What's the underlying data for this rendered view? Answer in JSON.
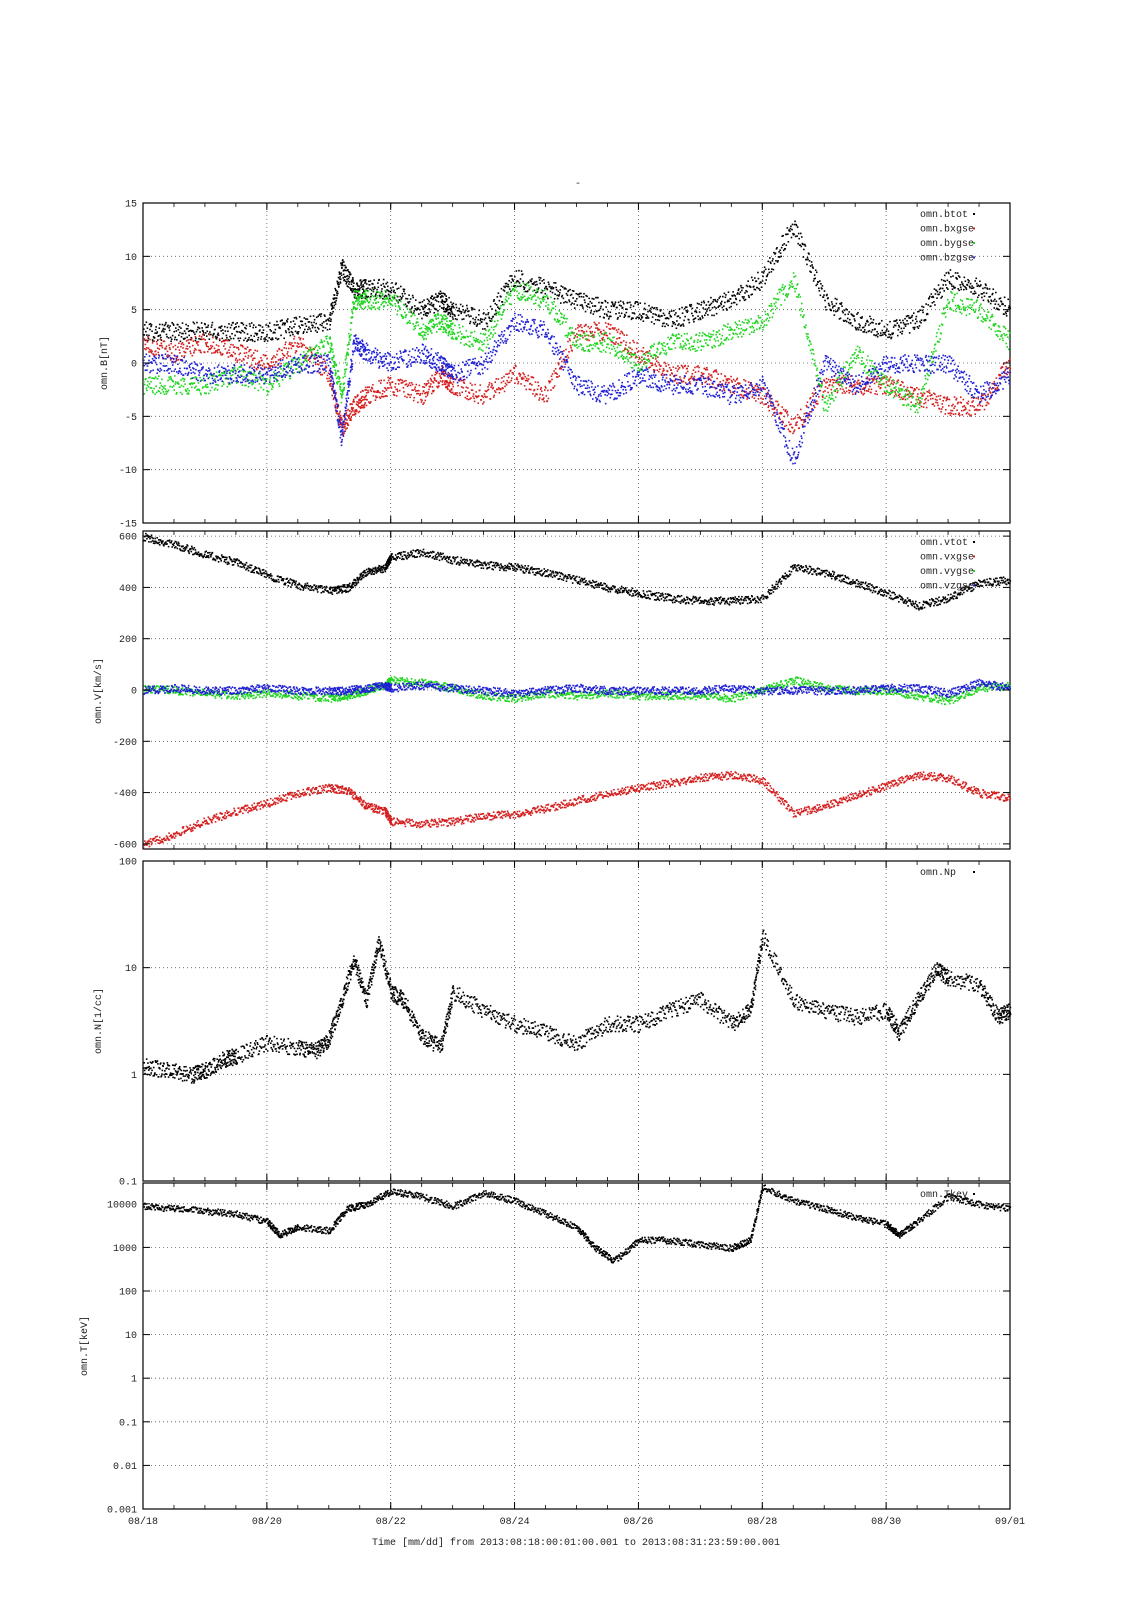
{
  "title": "-",
  "colors": {
    "black": "#000000",
    "red": "#d41f1f",
    "green": "#1fd41f",
    "blue": "#1f1fd4",
    "grid": "#444444"
  },
  "x_axis": {
    "label": "Time [mm/dd]  from 2013:08:18:00:01:00.001  to  2013:08:31:23:59:00.001",
    "range_days": [
      0,
      14
    ],
    "tick_labels": [
      "08/18",
      "08/20",
      "08/22",
      "08/24",
      "08/26",
      "08/28",
      "08/30",
      "09/01"
    ],
    "grid": true
  },
  "chart_data": [
    {
      "type": "scatter",
      "id": "panel-b",
      "ylabel": "omn.B[nT]",
      "ylim": [
        -15,
        15
      ],
      "yscale": "linear",
      "yticks": [
        -15,
        -10,
        -5,
        0,
        5,
        10,
        15
      ],
      "grid": true,
      "legend_position": "top-right",
      "series": [
        {
          "name": "omn.btot",
          "color": "#000000",
          "x": [
            0,
            0.5,
            1,
            1.5,
            2,
            2.5,
            3,
            3.2,
            3.4,
            3.6,
            4,
            4.5,
            4.8,
            5,
            5.5,
            6,
            6.5,
            7,
            7.5,
            8,
            8.5,
            9,
            9.5,
            10,
            10.5,
            11,
            11.5,
            12,
            12.5,
            13,
            13.5,
            14
          ],
          "y": [
            3,
            3,
            3,
            3,
            3,
            3.5,
            4,
            9,
            7,
            7,
            7,
            5,
            6,
            5,
            4,
            8,
            7,
            6,
            5,
            5,
            4,
            5,
            6,
            8,
            13,
            6,
            4,
            3,
            4,
            8,
            7,
            5
          ]
        },
        {
          "name": "omn.bxgse",
          "color": "#d41f1f",
          "x": [
            0,
            0.5,
            1,
            1.5,
            2,
            2.5,
            3,
            3.2,
            3.4,
            3.6,
            4,
            4.5,
            4.8,
            5,
            5.5,
            6,
            6.5,
            7,
            7.5,
            8,
            8.5,
            9,
            9.5,
            10,
            10.5,
            11,
            11.5,
            12,
            12.5,
            13,
            13.5,
            14
          ],
          "y": [
            2,
            1,
            2,
            1,
            0,
            2,
            -1,
            -6,
            -4,
            -3,
            -2,
            -3,
            -1,
            -2,
            -3,
            -1,
            -3,
            3,
            3,
            1,
            -1,
            -1,
            -2,
            -3,
            -6,
            -2,
            -2,
            -2,
            -3,
            -4,
            -4,
            0
          ]
        },
        {
          "name": "omn.bygse",
          "color": "#1fd41f",
          "x": [
            0,
            0.5,
            1,
            1.5,
            2,
            2.5,
            3,
            3.2,
            3.4,
            3.6,
            4,
            4.5,
            4.8,
            5,
            5.5,
            6,
            6.5,
            7,
            7.5,
            8,
            8.5,
            9,
            9.5,
            10,
            10.5,
            11,
            11.5,
            12,
            12.5,
            13,
            13.5,
            14
          ],
          "y": [
            -2,
            -2,
            -2,
            -1,
            -2,
            0,
            2,
            -3,
            6,
            6,
            6,
            3,
            4,
            3,
            2,
            7,
            6,
            2,
            2,
            0,
            2,
            2,
            3,
            4,
            8,
            -4,
            1,
            -2,
            -4,
            6,
            5,
            2
          ]
        },
        {
          "name": "omn.bzgse",
          "color": "#1f1fd4",
          "x": [
            0,
            0.5,
            1,
            1.5,
            2,
            2.5,
            3,
            3.2,
            3.4,
            3.6,
            4,
            4.5,
            4.8,
            5,
            5.5,
            6,
            6.5,
            7,
            7.5,
            8,
            8.5,
            9,
            9.5,
            10,
            10.5,
            11,
            11.5,
            12,
            12.5,
            13,
            13.5,
            14
          ],
          "y": [
            0,
            0,
            -1,
            -1,
            -1,
            0,
            0,
            -7,
            2,
            1,
            0,
            1,
            0,
            -1,
            0,
            4,
            3,
            -2,
            -3,
            -1,
            -2,
            -2,
            -3,
            -2,
            -9,
            0,
            -2,
            0,
            0,
            0,
            -3,
            -1
          ]
        }
      ]
    },
    {
      "type": "scatter",
      "id": "panel-v",
      "ylabel": "omn.V[km/s]",
      "ylim": [
        -620,
        620
      ],
      "yscale": "linear",
      "yticks": [
        -600,
        -400,
        -200,
        0,
        200,
        400,
        600
      ],
      "grid": true,
      "legend_position": "top-right",
      "series": [
        {
          "name": "omn.vtot",
          "color": "#000000",
          "x": [
            0,
            0.5,
            1,
            1.5,
            2,
            2.5,
            3,
            3.3,
            3.6,
            3.9,
            4,
            4.5,
            5,
            5.5,
            6,
            6.5,
            7,
            7.5,
            8,
            8.5,
            9,
            9.5,
            10,
            10.5,
            11,
            11.5,
            12,
            12.5,
            13,
            13.5,
            14
          ],
          "y": [
            600,
            570,
            530,
            500,
            450,
            410,
            390,
            400,
            460,
            480,
            520,
            540,
            510,
            490,
            480,
            460,
            430,
            400,
            380,
            360,
            350,
            350,
            360,
            480,
            460,
            420,
            380,
            330,
            360,
            420,
            430
          ]
        },
        {
          "name": "omn.vxgse",
          "color": "#d41f1f",
          "x": [
            0,
            0.5,
            1,
            1.5,
            2,
            2.5,
            3,
            3.3,
            3.6,
            3.9,
            4,
            4.5,
            5,
            5.5,
            6,
            6.5,
            7,
            7.5,
            8,
            8.5,
            9,
            9.5,
            10,
            10.5,
            11,
            11.5,
            12,
            12.5,
            13,
            13.5,
            14
          ],
          "y": [
            -600,
            -560,
            -510,
            -470,
            -440,
            -400,
            -380,
            -390,
            -450,
            -470,
            -510,
            -520,
            -510,
            -490,
            -480,
            -460,
            -430,
            -400,
            -380,
            -360,
            -340,
            -330,
            -350,
            -480,
            -450,
            -410,
            -370,
            -330,
            -340,
            -400,
            -420
          ]
        },
        {
          "name": "omn.vygse",
          "color": "#1fd41f",
          "x": [
            0,
            0.5,
            1,
            1.5,
            2,
            2.5,
            3,
            3.3,
            3.6,
            3.9,
            4,
            4.5,
            5,
            5.5,
            6,
            6.5,
            7,
            7.5,
            8,
            8.5,
            9,
            9.5,
            10,
            10.5,
            11,
            11.5,
            12,
            12.5,
            13,
            13.5,
            14
          ],
          "y": [
            10,
            0,
            -10,
            -20,
            -10,
            -20,
            -30,
            -20,
            0,
            20,
            40,
            30,
            10,
            -20,
            -30,
            -10,
            -20,
            -10,
            -20,
            -20,
            -20,
            -30,
            0,
            40,
            10,
            0,
            0,
            -20,
            -40,
            10,
            20
          ]
        },
        {
          "name": "omn.vzgse",
          "color": "#1f1fd4",
          "x": [
            0,
            0.5,
            1,
            1.5,
            2,
            2.5,
            3,
            3.3,
            3.6,
            3.9,
            4,
            4.5,
            5,
            5.5,
            6,
            6.5,
            7,
            7.5,
            8,
            8.5,
            9,
            9.5,
            10,
            10.5,
            11,
            11.5,
            12,
            12.5,
            13,
            13.5,
            14
          ],
          "y": [
            0,
            10,
            0,
            0,
            10,
            0,
            0,
            0,
            10,
            20,
            10,
            20,
            10,
            0,
            -10,
            0,
            10,
            0,
            0,
            0,
            0,
            10,
            0,
            0,
            0,
            0,
            10,
            10,
            -10,
            30,
            10
          ]
        }
      ]
    },
    {
      "type": "scatter",
      "id": "panel-n",
      "ylabel": "omn.N[1/cc]",
      "ylim": [
        0.1,
        100
      ],
      "yscale": "log",
      "yticks": [
        0.1,
        1,
        10,
        100
      ],
      "grid": true,
      "legend_position": "top-right",
      "series": [
        {
          "name": "omn.Np",
          "color": "#000000",
          "x": [
            0,
            0.4,
            0.8,
            1,
            1.3,
            1.5,
            2,
            2.5,
            2.8,
            3,
            3.2,
            3.4,
            3.6,
            3.8,
            4,
            4.2,
            4.5,
            4.8,
            5,
            5.5,
            6,
            6.5,
            7,
            7.5,
            8,
            8.5,
            9,
            9.5,
            9.8,
            10,
            10.5,
            11,
            11.5,
            12,
            12.2,
            12.5,
            12.8,
            13,
            13.5,
            13.8,
            14
          ],
          "y": [
            1.2,
            1.1,
            1,
            1.1,
            1.4,
            1.5,
            2,
            1.8,
            1.7,
            2.2,
            5,
            12,
            5,
            18,
            6,
            5,
            2.3,
            1.8,
            6,
            4,
            3,
            2.5,
            2,
            3,
            3,
            4,
            5,
            3,
            4,
            20,
            5,
            4,
            3.5,
            4,
            2.5,
            5,
            10,
            8,
            7,
            3.5,
            4
          ]
        }
      ]
    },
    {
      "type": "scatter",
      "id": "panel-t",
      "ylabel": "omn.T[keV]",
      "ylim": [
        0.001,
        30000
      ],
      "yscale": "log",
      "yticks": [
        "0.001",
        "0.01",
        "0.1",
        "1",
        "10",
        "100",
        "1000",
        "10000"
      ],
      "ytick_values": [
        0.001,
        0.01,
        0.1,
        1,
        10,
        100,
        1000,
        10000
      ],
      "grid": true,
      "legend_position": "top-right",
      "series": [
        {
          "name": "omn.Tkev",
          "color": "#000000",
          "x": [
            0,
            0.5,
            1,
            1.5,
            2,
            2.2,
            2.5,
            3,
            3.3,
            3.6,
            4,
            4.5,
            5,
            5.5,
            6,
            6.5,
            7,
            7.3,
            7.6,
            8,
            8.5,
            9,
            9.5,
            9.8,
            10,
            10.5,
            11,
            11.5,
            12,
            12.2,
            12.5,
            13,
            13.5,
            14
          ],
          "y": [
            9000,
            8000,
            7000,
            6000,
            4000,
            2000,
            3000,
            2500,
            8000,
            10000,
            20000,
            15000,
            9000,
            18000,
            12000,
            6000,
            3000,
            1000,
            500,
            1500,
            1500,
            1200,
            1000,
            1500,
            25000,
            12000,
            8000,
            5000,
            3500,
            2000,
            4000,
            15000,
            10000,
            8000
          ]
        }
      ]
    }
  ]
}
